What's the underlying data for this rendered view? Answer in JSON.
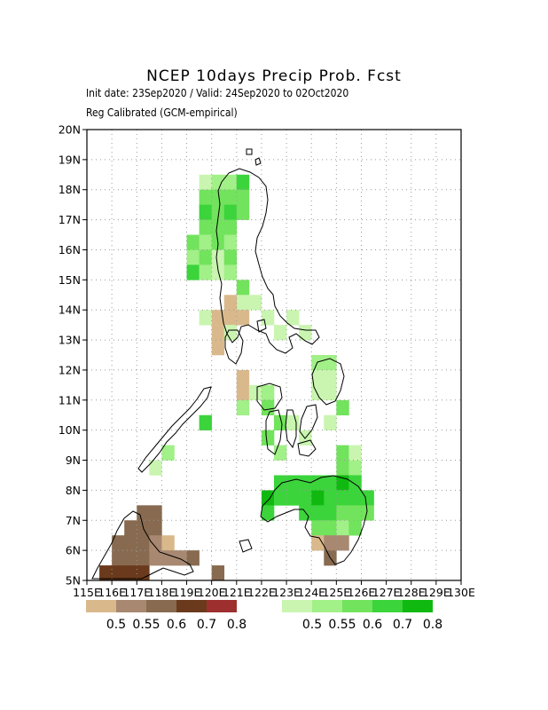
{
  "title": "NCEP 10days Precip Prob. Fcst",
  "subtitle_line1": "Init date: 23Sep2020 / Valid: 24Sep2020 to 02Oct2020",
  "subtitle_line2": "Reg Calibrated (GCM-empirical)",
  "axes": {
    "lat_labels": [
      "5N",
      "6N",
      "7N",
      "8N",
      "9N",
      "10N",
      "11N",
      "12N",
      "13N",
      "14N",
      "15N",
      "16N",
      "17N",
      "18N",
      "19N",
      "20N"
    ],
    "lon_labels": [
      "115E",
      "116E",
      "117E",
      "118E",
      "119E",
      "120E",
      "121E",
      "122E",
      "123E",
      "124E",
      "125E",
      "126E",
      "127E",
      "128E",
      "129E",
      "130E"
    ]
  },
  "legend": {
    "dry": {
      "colors": [
        "#d9b98c",
        "#a88870",
        "#876a50",
        "#6b3a1c",
        "#9e2f2f"
      ],
      "labels": [
        "0.5",
        "0.55",
        "0.6",
        "0.7",
        "0.8"
      ]
    },
    "wet": {
      "colors": [
        "#c9f5b0",
        "#a1f088",
        "#72e35c",
        "#3bd43b",
        "#10b910"
      ],
      "labels": [
        "0.5",
        "0.55",
        "0.6",
        "0.7",
        "0.8"
      ]
    }
  },
  "colors": {
    "coast": "#000000",
    "grid": "#9a9a9a"
  }
}
